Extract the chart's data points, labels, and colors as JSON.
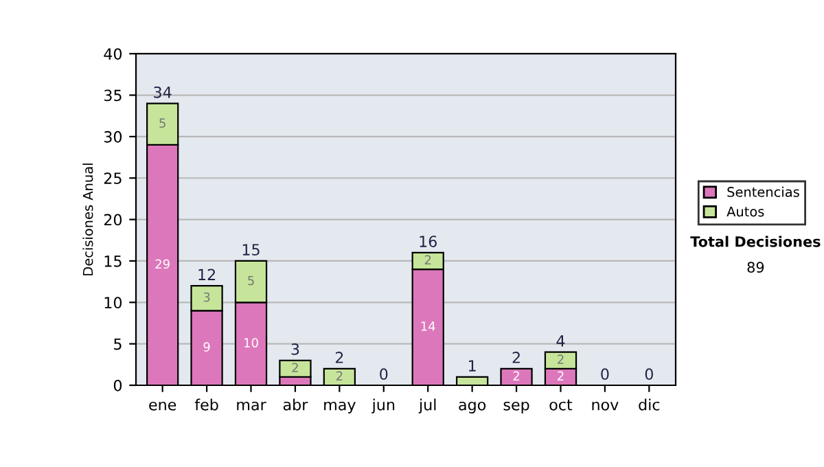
{
  "chart_data": {
    "type": "bar",
    "stacked": true,
    "ylabel": "Decisiones Anual",
    "categories": [
      "ene",
      "feb",
      "mar",
      "abr",
      "may",
      "jun",
      "jul",
      "ago",
      "sep",
      "oct",
      "nov",
      "dic"
    ],
    "series": [
      {
        "name": "Sentencias",
        "color": "#dd77bb",
        "values": [
          29,
          9,
          10,
          1,
          0,
          0,
          14,
          0,
          2,
          2,
          0,
          0
        ],
        "value_labels": [
          "29",
          "9",
          "10",
          null,
          null,
          null,
          "14",
          null,
          "2",
          "2",
          null,
          null
        ]
      },
      {
        "name": "Autos",
        "color": "#c6e59a",
        "values": [
          5,
          3,
          5,
          2,
          2,
          0,
          2,
          1,
          0,
          2,
          0,
          0
        ],
        "value_labels": [
          "5",
          "3",
          "5",
          "2",
          "2",
          null,
          "2",
          null,
          null,
          "2",
          null,
          null
        ]
      }
    ],
    "totals": [
      "34",
      "12",
      "15",
      "3",
      "2",
      "0",
      "16",
      "1",
      "2",
      "4",
      "0",
      "0"
    ],
    "ylim": [
      0,
      40
    ],
    "yticks": [
      0,
      5,
      10,
      15,
      20,
      25,
      30,
      35,
      40
    ],
    "grid": "y",
    "legend": "right",
    "annotations": [
      "Total Decisiones",
      "89"
    ]
  }
}
